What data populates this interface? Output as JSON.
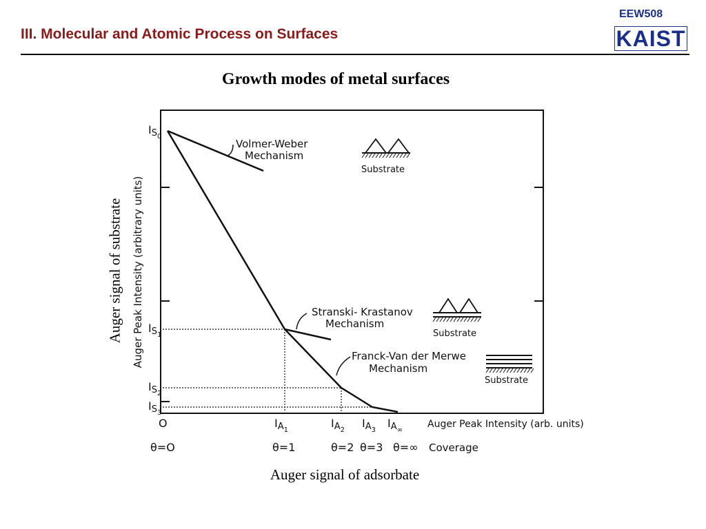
{
  "header": {
    "title": "III. Molecular and Atomic Process on Surfaces",
    "course_code": "EEW508",
    "logo_text": "KAIST",
    "title_color": "#8b1a1a",
    "logo_color": "#1a2f8c"
  },
  "figure": {
    "title": "Growth modes of metal surfaces",
    "y_caption": "Auger signal of substrate",
    "x_caption": "Auger signal of adsorbate"
  },
  "chart_data": {
    "type": "line",
    "ylabel": "Auger Peak Intensity (arbitrary units)",
    "xlabel": "Auger Peak Intensity (arb. units)",
    "origin_label": "O",
    "coverage_label": "Coverage",
    "y_ticks": [
      {
        "label": "IS0",
        "main": "I",
        "sub": "S",
        "subsub": "0",
        "value": 1.0
      },
      {
        "label": "IS1",
        "main": "I",
        "sub": "S",
        "subsub": "1",
        "value": 0.3
      },
      {
        "label": "IS2",
        "main": "I",
        "sub": "S",
        "subsub": "2",
        "value": 0.07
      },
      {
        "label": "IS3",
        "main": "I",
        "sub": "S",
        "subsub": "3",
        "value": 0.0
      }
    ],
    "x_ticks": [
      {
        "label": "IA1",
        "main": "I",
        "sub": "A",
        "subsub": "1",
        "coverage": "θ=1"
      },
      {
        "label": "IA2",
        "main": "I",
        "sub": "A",
        "subsub": "2",
        "coverage": "θ=2"
      },
      {
        "label": "IA3",
        "main": "I",
        "sub": "A",
        "subsub": "3",
        "coverage": "θ=3"
      },
      {
        "label": "IA∞",
        "main": "I",
        "sub": "A",
        "subsub": "∞",
        "coverage": "θ=∞"
      }
    ],
    "origin_coverage": "θ=O",
    "mechanisms": [
      {
        "name": "Volmer-Weber",
        "label_line1": "Volmer-Weber",
        "label_line2": "Mechanism",
        "substrate_label": "Substrate",
        "illustration": "islands"
      },
      {
        "name": "Stranski-Krastanov",
        "label_line1": "Stranski- Krastanov",
        "label_line2": "Mechanism",
        "substrate_label": "Substrate",
        "illustration": "layer-plus-islands"
      },
      {
        "name": "Franck-Van der Merwe",
        "label_line1": "Franck-Van der Merwe",
        "label_line2": "Mechanism",
        "substrate_label": "Substrate",
        "illustration": "layers"
      }
    ]
  }
}
